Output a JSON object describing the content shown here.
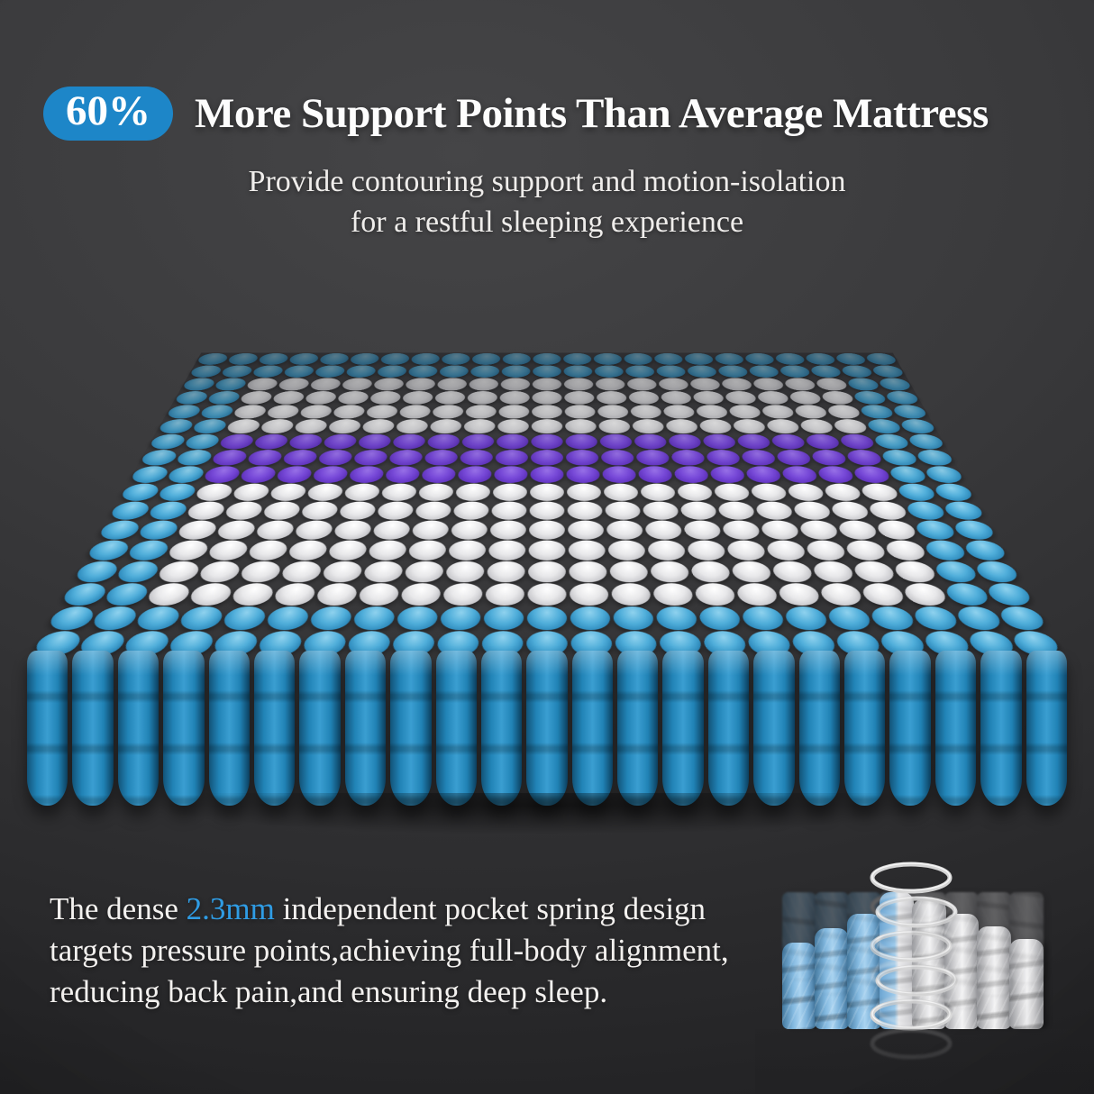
{
  "header": {
    "badge_label": "60%",
    "badge_color": "#1d86c8",
    "headline": "More Support Points Than Average Mattress",
    "subtitle_line1": "Provide contouring support and motion-isolation",
    "subtitle_line2": "for a restful sleeping experience"
  },
  "mattress": {
    "columns": 23,
    "rows": 17,
    "border_ring": 2,
    "purple_rows": [
      6,
      7,
      8
    ],
    "front_cylinders": 23,
    "colors": {
      "border_spring": "#2d8abc",
      "interior_spring": "#e8e8ea",
      "lumbar_spring": "#7a4ade",
      "front_face": "#2183b6"
    }
  },
  "footer": {
    "text_pre": "The dense ",
    "highlight": "2.3mm",
    "highlight_color": "#2f9ce4",
    "text_line1_rest": " independent pocket spring design",
    "text_line2": "targets pressure points,achieving full-body alignment,",
    "text_line3": "reducing back pain,and ensuring deep sleep."
  },
  "illustration": {
    "pocket_types": [
      "blue",
      "blue",
      "blue",
      "split",
      "white",
      "white",
      "white",
      "white"
    ],
    "pocket_heights": [
      96,
      112,
      128,
      152,
      144,
      128,
      114,
      100
    ],
    "coil_color": "#d6d6d6"
  }
}
